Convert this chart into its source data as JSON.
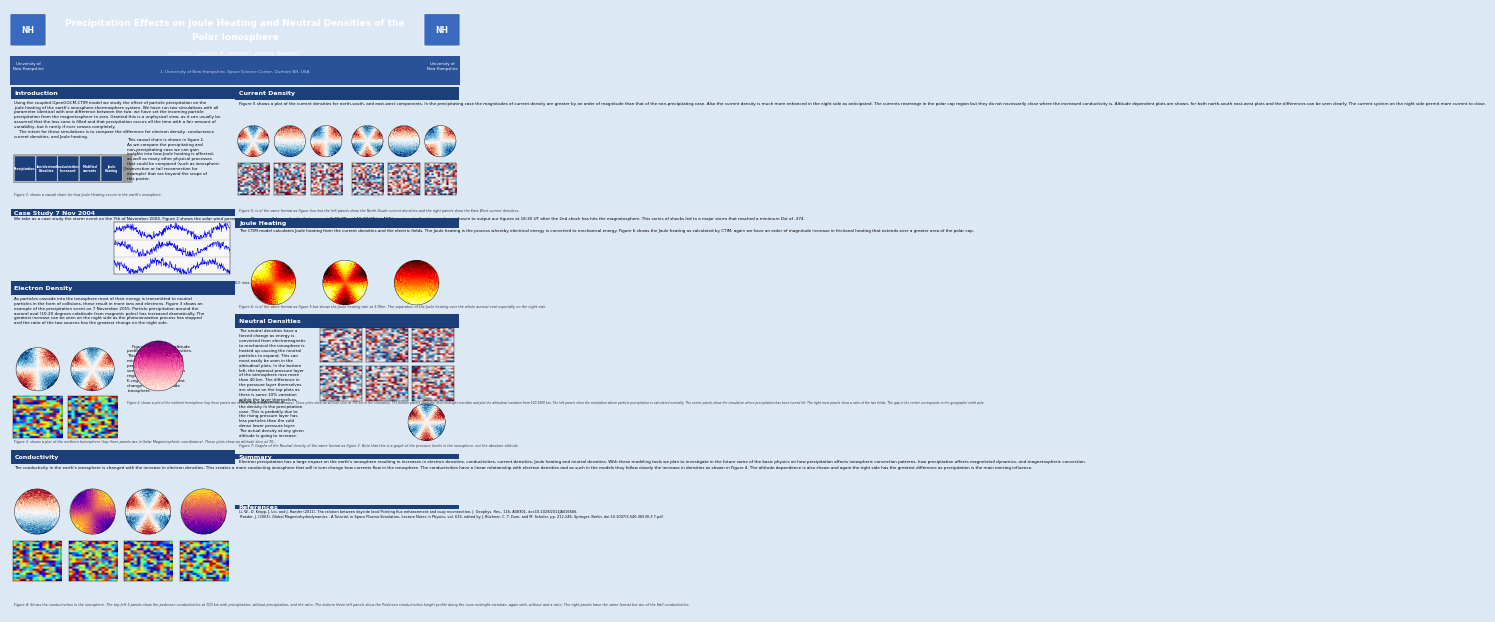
{
  "title_line1": "Precipitation Effects on Joule Heating and Neutral Densities of the",
  "title_line2": "Polar Ionosphere",
  "authors": "Authors: Joseph B. Jensen¹, Jimmy Raeder¹",
  "affiliation": "1. University of New Hampshire, Space Science Center, Durham NH, USA",
  "header_bg": "#1c3f7a",
  "header_bg2": "#2a5298",
  "section_header_bg": "#1c3f7a",
  "body_bg": "#dde8f5",
  "section_bg": "#e8eef8",
  "intro_text": "Using the coupled OpenGGCM-CTIM model we study the effect of particle precipitation on the joule heating of the earth's ionosphere-thermosphere system. We have run two simulations with all parameter identical with one difference between the two: we have set the incoming particle precipitation from the magnetosphere to zero. Granted this is a unphysical view, as it can usually be assumed that the loss cone is filled and that precipitation occurs all the time with a fair amount of variability, but it rarely if ever ceases completely.\n    The intent for these simulations is to compare the difference for electron density, conductance current densities, and Joule heating. This causal chain is shown in figure 1. As we compare the precipitating and non-precipitating case we can gain insights into how Joule heating is affected, as well as many other physical processes that could be compared (such as ionospheric convection or tail reconnection for example) that are beyond the scope of this poster.",
  "case_text": "We take as a case study the storm event on the 7th of November 2004. Figure 2 shows the solar wind parameters. There are 2 large shocks that occur at 9:20 UT and 18:20 UT (at ACE) previous to the time we have chosen to output our figures at 18:30 UT after the 2nd shock has hits the magnetosphere. This series of shocks led to a major storm that reached a minimum Dst of -374.",
  "edens_text": "As particles cascade into the ionosphere most of their energy is transmitted to neutral particles in the form of collisions, these result in more ions and electrons. Figure 3 shows an example of the precipitation event on 7 November 2015. Particle precipitation around the auroral oval (10-20 degrees colatitude from magnetic poles) has increased dramatically. The greatest increase can be seen on the night side as the photoionization process has stopped and the ratio of the two sources has the greatest change on the night side.\n    Figure 3 also has an altitude profile of the electron densities. This is taken from the noon midnight meridian. The precipitation effects can be seen in the plots and effects regions down well into the E-region. Again the greatest change is in the nightside ionosphere.",
  "cond_text": "The conductivity in the earth's ionosphere is changed with the increase in electron densities. This creates a more conducting ionosphere that will in turn change how currents flow in the ionosphere. The conductivities have a linear relationship with electron densities and as such in the models they follow closely the increase in densities as shown in Figure 4. The altitude dependence is also shown and again the right side has the greatest difference as precipitation is the main ionizing influence.",
  "curr_text": "Figure 5 shows a plot of the current densities for north-south, and east-west components. In the precipitating case the magnitudes of current density are greater by an order of magnitude than that of the non-precipitating case. Also the current density is much more enhanced in the night side as anticipated. The currents rearrange in the polar cap region but they do not necessarily close where the increased conductivity is. Altitude dependent plots are shown, for both north-south east-west plots and the differences can be seen clearly. The current system on the night side permit more current to close.",
  "joule_text": "The CTIM model calculates Joule heating from the current densities and the electric fields. The Joule heating is the process whereby electrical energy is converted to mechanical energy. Figure 6 shows the Joule heating as calculated by CTIM, again we have an order of magnitude increase in frictional heating that extends over a greater area of the polar cap.",
  "neutral_text": "The neutral densities have a forced change as energy is converted from electromagnetic to mechanical the ionosphere is heated up causing the neutral particles to expand. This can most easily be seen in the altitudinal plots. In the bottom left, the topmost pressure layer of the atmosphere rose more than 40 km. The difference in the pressure layer themselves are shown on the top plots as there is some 10% variation within the layer themselves. Below is a decrease in the density in the precipitation case. This is probably due to the rising pressure layer has less particles than the cold dense lower pressure layer. The actual density at any given altitude is going to increase.",
  "summary_text": "Electron precipitation has a large impact on the earth's ionosphere resulting in increases in electron densities, conductivities, current densities, Joule heating and neutral densities. With these modeling tools we plan to investigate in the future some of the basic physics on how precipitation affects ionospheric convection patterns, how precipitation affects magnetotail dynamics, and magnetospheric convection.",
  "ref_text": "Li, W., D. Knipp, J. Lei, and J. Raeder (2011), The relation between dayside local Pointing flux enhancement and cusp reconnection, J. Geophys. Res., 116, A08301, doi:10.1029/2011JA016566.\n Raeder, J. (2003), Global Magnetohydrodynamics - A Tutorial, in Space Plasma Simulation, Lecture Notes in Physics, vol. 615, edited by J. Büchner, C. T. Dum, and M. Scholer, pp. 212-246, Springer, Berlin, doi:10.1007/3-540-36530-3 7.pdf",
  "chain_boxes": [
    "Precipitation",
    "Ion/electron\nDensities",
    "Conductivities\nIncreased",
    "Modified\ncurrents",
    "Joule\nHeating"
  ],
  "fig1_cap": "Figure 1: shows a causal chain for how Joule Heating occurs in the earth's ionosphere.",
  "fig2_cap": "Figure 2: shows the solar wind parameters for the 7 November storm taken from ACE data.",
  "fig3_cap": "Figure 3: shows a plot of the northern hemisphere (top three panels are in Solar Magnetospheric coordinates). These plots show an altitude slice at 700 km in the simulation. The bottom panels show the noon midnight meridian and plot the altitudinal variation from 100-1000 km. The left panels show the simulation where particle precipitation is calculated normally. The center panels show the simulation where precipitation has been turned off. The right most panels show a ratio of the two fields. The gap in the center corresponds to the geographic north pole.",
  "fig4_cap": "Figure 4: Shows the conductivities in the ionosphere. The top left 3 panels show the pedersen conductivities at 700 km with precipitation, without precipitation, and the ratio. The bottom three left panels show the Pedersen conductivities height profile along the noon midnight meridian, again with, without and a ratio. The right panels have the same format but are of the Hall conductivities.",
  "fig5_cap": "Figure 5: is of the same format as figure four but the left panels show the North-South current densities and the right panels show the East-West current densities.",
  "fig6_cap": "Figure 6: is of the same format as figure 5 but shows the Joule heating rate at 3 Ohm. The separation of the Joule heating over the whole auroral oval especially on the night side.",
  "fig7_cap": "Figure 7: Graphs of the Neutral density of the same format as figure 3. Note that this is a graph of the pressure levels in the ionosphere, not the absolute altitude."
}
